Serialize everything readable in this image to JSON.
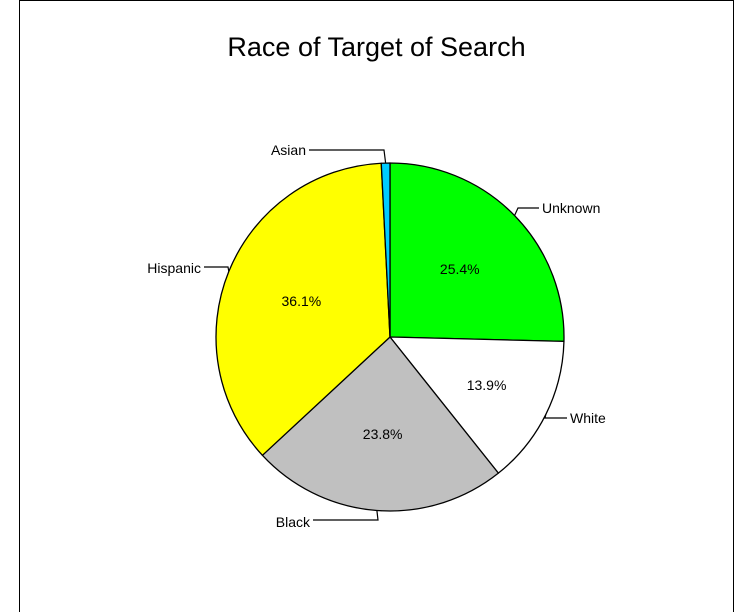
{
  "chart_data": {
    "type": "pie",
    "title": "Race of Target of Search",
    "slices": [
      {
        "label": "Unknown",
        "value": 25.4,
        "value_label": "25.4%",
        "color": "#00ff00"
      },
      {
        "label": "White",
        "value": 13.9,
        "value_label": "13.9%",
        "color": "#ffffff"
      },
      {
        "label": "Black",
        "value": 23.8,
        "value_label": "23.8%",
        "color": "#c0c0c0"
      },
      {
        "label": "Hispanic",
        "value": 36.1,
        "value_label": "36.1%",
        "color": "#ffff00"
      },
      {
        "label": "Asian",
        "value": 0.8,
        "value_label": "",
        "color": "#00ccff"
      }
    ],
    "start": "12 o'clock",
    "direction": "clockwise"
  }
}
